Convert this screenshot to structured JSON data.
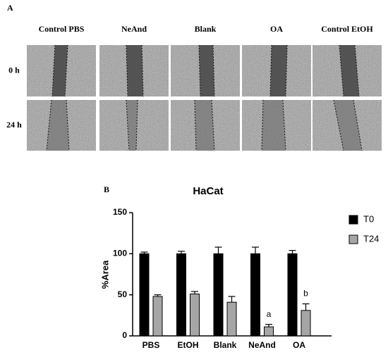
{
  "panel_a": {
    "label": "A",
    "columns": [
      "Control PBS",
      "NeAnd",
      "Blank",
      "OA",
      "Control EtOH"
    ],
    "rows": [
      "0 h",
      "24 h"
    ]
  },
  "panel_b_label": "B",
  "chart_data": {
    "type": "bar",
    "title": "HaCat",
    "y_label": "%Area",
    "categories": [
      "PBS",
      "EtOH",
      "Blank",
      "NeAnd",
      "OA"
    ],
    "series": [
      {
        "name": "T0",
        "color": "#000000",
        "values": [
          100,
          100,
          100,
          100,
          100
        ],
        "errors": [
          2,
          3,
          8,
          8,
          4
        ]
      },
      {
        "name": "T24",
        "color": "#a6a6a6",
        "values": [
          48,
          51,
          41,
          11,
          31
        ],
        "errors": [
          2,
          3,
          7,
          3,
          8
        ]
      }
    ],
    "annotations": [
      {
        "text": "a",
        "category": "NeAnd",
        "series": "T24"
      },
      {
        "text": "b",
        "category": "OA",
        "series": "T24"
      }
    ],
    "ylim": [
      0,
      150
    ],
    "yticks": [
      0,
      50,
      100,
      150
    ],
    "legend": "upper-right"
  }
}
